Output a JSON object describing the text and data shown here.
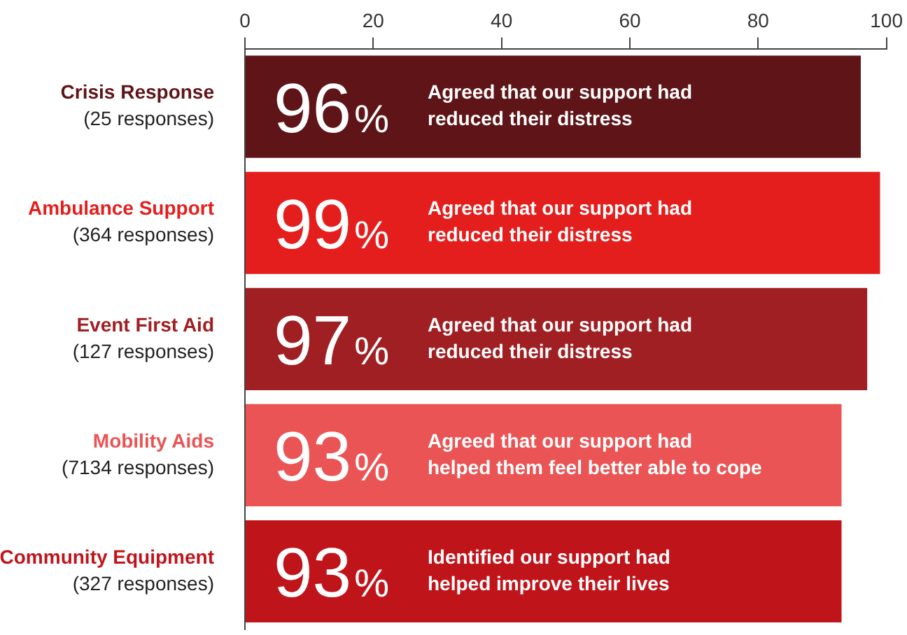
{
  "chart_data": {
    "type": "bar",
    "orientation": "horizontal",
    "categories": [
      "Crisis Response\n(25 responses)",
      "Ambulance Support\n(364 responses)",
      "Event First Aid\n(127 responses)",
      "Mobility Aids\n(7134 responses)",
      "Community Equipment\n(327 responses)"
    ],
    "values": [
      96,
      99,
      97,
      93,
      93
    ],
    "colors": [
      "#5f1518",
      "#e41e1c",
      "#a01f22",
      "#ea5455",
      "#c0141b"
    ],
    "value_labels": [
      "96%",
      "99%",
      "97%",
      "93%",
      "93%"
    ],
    "annotations": [
      "Agreed that our support had\nreduced their distress",
      "Agreed that our support had\nreduced their distress",
      "Agreed that our support had\nreduced their distress",
      "Agreed that our support had\nhelped them feel better able to cope",
      "Identified our support had\nhelped improve their lives"
    ],
    "xlim": [
      0,
      100
    ],
    "xticks": [
      0,
      20,
      40,
      60,
      80,
      100
    ],
    "grid": false,
    "legend": false
  }
}
